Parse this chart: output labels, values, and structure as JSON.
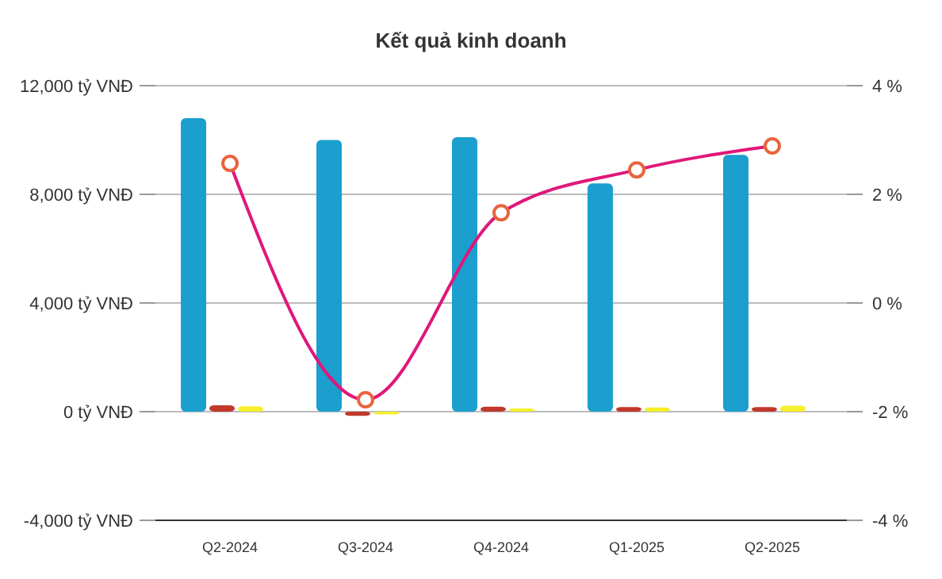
{
  "chart_data": {
    "type": "bar",
    "title": "Kết quả kinh doanh",
    "categories": [
      "Q2-2024",
      "Q3-2024",
      "Q4-2024",
      "Q1-2025",
      "Q2-2025"
    ],
    "series": [
      {
        "color": "#1a9fcf",
        "values": [
          10800,
          10000,
          10100,
          8400,
          9450
        ]
      },
      {
        "color": "#c0392b",
        "values": [
          230,
          -150,
          180,
          170,
          170
        ]
      },
      {
        "color": "#f5f02a",
        "values": [
          200,
          -100,
          120,
          150,
          220
        ]
      },
      {
        "type": "line",
        "axis": "y2",
        "color": "#e0177a",
        "marker": "circle",
        "values": [
          2.57,
          -1.78,
          1.66,
          2.45,
          2.89
        ]
      }
    ],
    "ylim": [
      -4000,
      12000
    ],
    "yticks": [
      {
        "value": -4000,
        "label": "-4,000 tỷ VNĐ"
      },
      {
        "value": 0,
        "label": "0 tỷ VNĐ"
      },
      {
        "value": 4000,
        "label": "4,000 tỷ VNĐ"
      },
      {
        "value": 8000,
        "label": "8,000 tỷ VNĐ"
      },
      {
        "value": 12000,
        "label": "12,000 tỷ VNĐ"
      }
    ],
    "y2lim": [
      -4,
      4
    ],
    "y2ticks": [
      {
        "value": -4,
        "label": "-4 %"
      },
      {
        "value": -2,
        "label": "-2 %"
      },
      {
        "value": 0,
        "label": "0 %"
      },
      {
        "value": 2,
        "label": "2 %"
      },
      {
        "value": 4,
        "label": "4 %"
      }
    ],
    "grid": "y"
  }
}
